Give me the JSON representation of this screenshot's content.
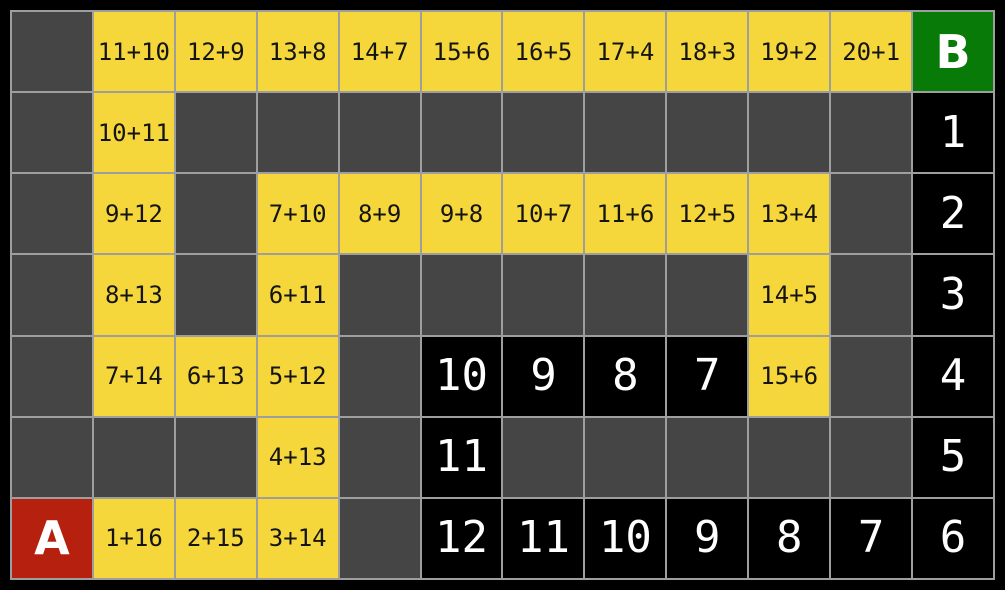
{
  "board": {
    "columns": 12,
    "rows": 7,
    "start_label": "A",
    "goal_label": "B",
    "cells": [
      [
        {
          "t": "empty"
        },
        {
          "t": "expr",
          "v": "11+10"
        },
        {
          "t": "expr",
          "v": "12+9"
        },
        {
          "t": "expr",
          "v": "13+8"
        },
        {
          "t": "expr",
          "v": "14+7"
        },
        {
          "t": "expr",
          "v": "15+6"
        },
        {
          "t": "expr",
          "v": "16+5"
        },
        {
          "t": "expr",
          "v": "17+4"
        },
        {
          "t": "expr",
          "v": "18+3"
        },
        {
          "t": "expr",
          "v": "19+2"
        },
        {
          "t": "expr",
          "v": "20+1"
        },
        {
          "t": "goal",
          "v": "B"
        }
      ],
      [
        {
          "t": "empty"
        },
        {
          "t": "expr",
          "v": "10+11"
        },
        {
          "t": "empty"
        },
        {
          "t": "empty"
        },
        {
          "t": "empty"
        },
        {
          "t": "empty"
        },
        {
          "t": "empty"
        },
        {
          "t": "empty"
        },
        {
          "t": "empty"
        },
        {
          "t": "empty"
        },
        {
          "t": "empty"
        },
        {
          "t": "count",
          "v": "1"
        }
      ],
      [
        {
          "t": "empty"
        },
        {
          "t": "expr",
          "v": "9+12"
        },
        {
          "t": "empty"
        },
        {
          "t": "expr",
          "v": "7+10"
        },
        {
          "t": "expr",
          "v": "8+9"
        },
        {
          "t": "expr",
          "v": "9+8"
        },
        {
          "t": "expr",
          "v": "10+7"
        },
        {
          "t": "expr",
          "v": "11+6"
        },
        {
          "t": "expr",
          "v": "12+5"
        },
        {
          "t": "expr",
          "v": "13+4"
        },
        {
          "t": "empty"
        },
        {
          "t": "count",
          "v": "2"
        }
      ],
      [
        {
          "t": "empty"
        },
        {
          "t": "expr",
          "v": "8+13"
        },
        {
          "t": "empty"
        },
        {
          "t": "expr",
          "v": "6+11"
        },
        {
          "t": "empty"
        },
        {
          "t": "empty"
        },
        {
          "t": "empty"
        },
        {
          "t": "empty"
        },
        {
          "t": "empty"
        },
        {
          "t": "expr",
          "v": "14+5"
        },
        {
          "t": "empty"
        },
        {
          "t": "count",
          "v": "3"
        }
      ],
      [
        {
          "t": "empty"
        },
        {
          "t": "expr",
          "v": "7+14"
        },
        {
          "t": "expr",
          "v": "6+13"
        },
        {
          "t": "expr",
          "v": "5+12"
        },
        {
          "t": "empty"
        },
        {
          "t": "count",
          "v": "10"
        },
        {
          "t": "count",
          "v": "9"
        },
        {
          "t": "count",
          "v": "8"
        },
        {
          "t": "count",
          "v": "7"
        },
        {
          "t": "expr",
          "v": "15+6"
        },
        {
          "t": "empty"
        },
        {
          "t": "count",
          "v": "4"
        }
      ],
      [
        {
          "t": "empty"
        },
        {
          "t": "empty"
        },
        {
          "t": "empty"
        },
        {
          "t": "expr",
          "v": "4+13"
        },
        {
          "t": "empty"
        },
        {
          "t": "count",
          "v": "11"
        },
        {
          "t": "empty"
        },
        {
          "t": "empty"
        },
        {
          "t": "empty"
        },
        {
          "t": "empty"
        },
        {
          "t": "empty"
        },
        {
          "t": "count",
          "v": "5"
        }
      ],
      [
        {
          "t": "start",
          "v": "A"
        },
        {
          "t": "expr",
          "v": "1+16"
        },
        {
          "t": "expr",
          "v": "2+15"
        },
        {
          "t": "expr",
          "v": "3+14"
        },
        {
          "t": "empty"
        },
        {
          "t": "count",
          "v": "12"
        },
        {
          "t": "count",
          "v": "11"
        },
        {
          "t": "count",
          "v": "10"
        },
        {
          "t": "count",
          "v": "9"
        },
        {
          "t": "count",
          "v": "8"
        },
        {
          "t": "count",
          "v": "7"
        },
        {
          "t": "count",
          "v": "6"
        }
      ]
    ]
  },
  "colors": {
    "background": "#000000",
    "gridline": "#9e9e9e",
    "empty_cell": "#454545",
    "path_cell": "#f5d63b",
    "expr_text": "#141414",
    "count_cell_bg": "#000000",
    "count_text": "#ffffff",
    "start_bg": "#b6200f",
    "goal_bg": "#077a07"
  }
}
